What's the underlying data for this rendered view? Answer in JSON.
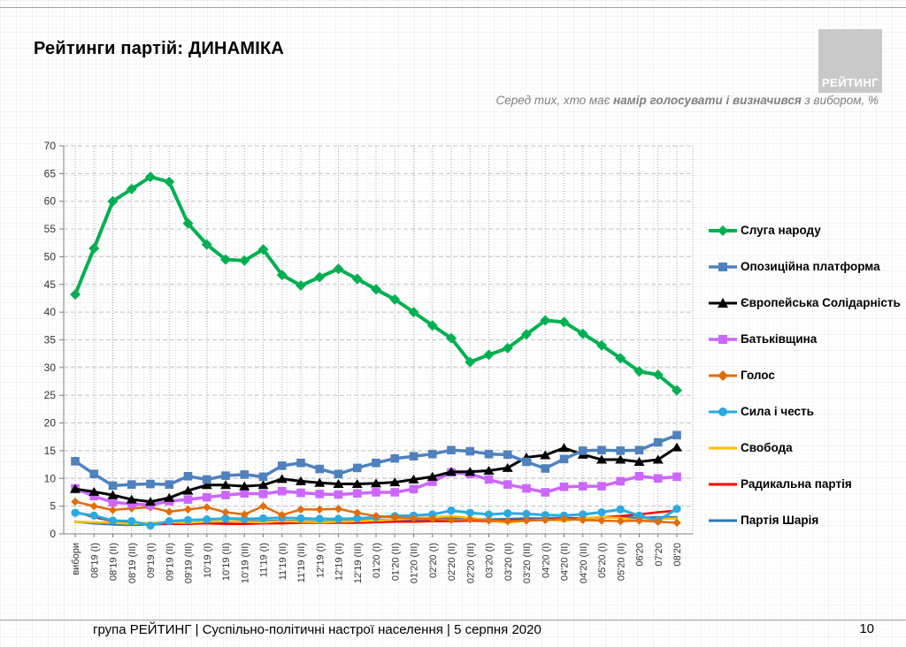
{
  "header": {
    "title": "Рейтинги партій: ДИНАМІКА",
    "logo_text": "РЕЙТИНГ"
  },
  "subtitle": {
    "prefix": "Серед тих, хто має ",
    "bold": "намір голосувати і визначився",
    "suffix": " з вибором, %"
  },
  "footer": {
    "left": "група РЕЙТИНГ | Суспільно-політичні настрої населення  | 5 серпня 2020",
    "page_number": "10"
  },
  "chart_data": {
    "type": "line",
    "title": "Рейтинги партій: ДИНАМІКА",
    "subtitle": "Серед тих, хто має намір голосувати і визначився з вибором, %",
    "xlabel": "",
    "ylabel": "%",
    "ylim": [
      0,
      70
    ],
    "ytick_step": 5,
    "grid": true,
    "legend_position": "right",
    "categories": [
      "вибори",
      "08'19 (I)",
      "08'19 (II)",
      "08'19 (III)",
      "09'19 (I)",
      "09'19 (II)",
      "09'19 (III)",
      "10'19 (I)",
      "10'19 (II)",
      "10'19 (III)",
      "11'19 (I)",
      "11'19 (II)",
      "11'19 (III)",
      "12'19 (I)",
      "12'19 (II)",
      "12'19 (III)",
      "01'20 (I)",
      "01'20 (II)",
      "01'20 (III)",
      "02'20 (I)",
      "02'20 (II)",
      "02'20 (III)",
      "03'20 (I)",
      "03'20 (II)",
      "03'20 (III)",
      "04'20 (I)",
      "04'20 (II)",
      "04'20 (III)",
      "05'20 (I)",
      "05'20 (II)",
      "06'20",
      "07'20",
      "08'20"
    ],
    "series": [
      {
        "name": "Слуга народу",
        "color": "#00B050",
        "marker": "diamond",
        "line_width": 4,
        "values": [
          43.2,
          51.5,
          60,
          62.2,
          64.4,
          63.5,
          56,
          52.2,
          49.5,
          49.3,
          51.3,
          46.7,
          44.8,
          46.3,
          47.8,
          46,
          44.1,
          42.3,
          40,
          37.6,
          35.3,
          31,
          32.3,
          33.5,
          36,
          38.5,
          38.2,
          36.1,
          34,
          31.7,
          29.3,
          28.7,
          25.9
        ]
      },
      {
        "name": "Опозиційна платформа",
        "color": "#4F81BD",
        "marker": "square",
        "line_width": 3.5,
        "values": [
          13.1,
          10.8,
          8.7,
          8.9,
          9,
          8.9,
          10.4,
          9.8,
          10.5,
          10.7,
          10.3,
          12.3,
          12.8,
          11.7,
          10.8,
          11.9,
          12.8,
          13.6,
          14,
          14.4,
          15.1,
          14.9,
          14.4,
          14.3,
          13,
          11.8,
          13.5,
          15,
          15.1,
          15,
          15.1,
          16.5,
          17.8
        ]
      },
      {
        "name": "Європейська Солідарність",
        "color": "#000000",
        "marker": "triangle",
        "line_width": 3,
        "values": [
          8.1,
          7.6,
          7,
          6.2,
          5.8,
          6.5,
          7.8,
          8.8,
          8.8,
          8.6,
          8.8,
          9.9,
          9.5,
          9.2,
          9,
          9,
          9.1,
          9.3,
          9.8,
          10.3,
          11.2,
          11.2,
          11.4,
          11.9,
          13.8,
          14.2,
          15.5,
          14.3,
          13.4,
          13.4,
          13,
          13.4,
          15.6
        ]
      },
      {
        "name": "Батьківщина",
        "color": "#CC66FF",
        "marker": "square",
        "line_width": 3.5,
        "values": [
          8.2,
          6.8,
          5.7,
          5.4,
          5.2,
          5.9,
          6.2,
          6.6,
          7,
          7.3,
          7.2,
          7.7,
          7.4,
          7.2,
          7.1,
          7.3,
          7.5,
          7.5,
          8.1,
          9.4,
          11.1,
          10.8,
          9.8,
          8.9,
          8.2,
          7.5,
          8.5,
          8.6,
          8.6,
          9.5,
          10.4,
          10,
          10.3
        ]
      },
      {
        "name": "Голос",
        "color": "#E36C0A",
        "marker": "diamond",
        "line_width": 2.5,
        "values": [
          5.8,
          5,
          4.3,
          4.6,
          4.8,
          4,
          4.4,
          4.8,
          3.9,
          3.5,
          5,
          3.4,
          4.4,
          4.4,
          4.5,
          3.8,
          3.2,
          3,
          2.8,
          2.7,
          2.5,
          2.6,
          2.4,
          2.3,
          2.4,
          2.5,
          2.7,
          2.5,
          2.4,
          2.3,
          2.4,
          2.2,
          2
        ]
      },
      {
        "name": "Сила і честь",
        "color": "#29ABE2",
        "marker": "circle",
        "line_width": 3,
        "values": [
          3.8,
          3.3,
          2.4,
          2.3,
          1.5,
          2.3,
          2.5,
          2.6,
          2.8,
          2.7,
          2.8,
          2.9,
          2.8,
          2.7,
          2.7,
          2.8,
          3,
          3.2,
          3.3,
          3.5,
          4.2,
          3.8,
          3.5,
          3.7,
          3.6,
          3.4,
          3.3,
          3.5,
          3.9,
          4.4,
          3.3,
          2.4,
          4.5
        ]
      },
      {
        "name": "Свобода",
        "color": "#FFC000",
        "marker": "none",
        "line_width": 2.5,
        "values": [
          2.2,
          2.1,
          2,
          1.8,
          2,
          2.1,
          2,
          2.2,
          2.3,
          2.2,
          2.1,
          2.3,
          2.2,
          2.1,
          2.2,
          2.3,
          2.4,
          2.6,
          2.8,
          3,
          3.2,
          2.9,
          2.4,
          2,
          2.4,
          2.6,
          2.3,
          2.8,
          3,
          2.9,
          2.4,
          2.7,
          2.8
        ]
      },
      {
        "name": "Радикальна партія",
        "color": "#FF0000",
        "marker": "none",
        "line_width": 2.5,
        "values": [
          4,
          3,
          2.3,
          2,
          1.9,
          1.8,
          1.8,
          1.9,
          1.8,
          1.8,
          1.9,
          1.9,
          2,
          2,
          2,
          2,
          2.1,
          2.2,
          2.2,
          2.3,
          2.3,
          2.4,
          2.3,
          2.4,
          2.5,
          2.6,
          2.7,
          2.8,
          3,
          3.2,
          3.5,
          3.9,
          4.2
        ]
      },
      {
        "name": "Партія Шарія",
        "color": "#2E75B6",
        "marker": "none",
        "line_width": 2.5,
        "values": [
          2.2,
          1.9,
          1.7,
          1.6,
          1.7,
          1.8,
          2,
          2.1,
          2.2,
          2.3,
          2.3,
          2.4,
          2.3,
          2.2,
          2.3,
          2.4,
          2.5,
          2.6,
          2.6,
          2.7,
          2.8,
          2.7,
          2.6,
          2.7,
          2.8,
          2.8,
          2.9,
          2.8,
          2.9,
          3,
          2.9,
          3,
          3
        ]
      }
    ]
  }
}
